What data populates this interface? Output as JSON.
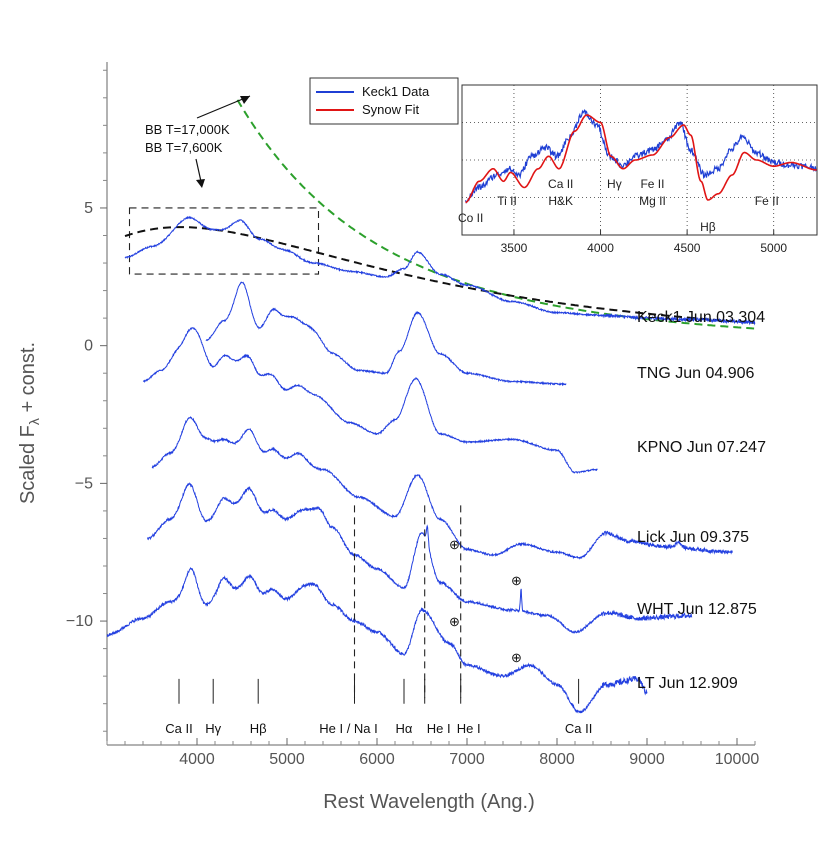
{
  "chart_data": [
    {
      "type": "line",
      "title": "",
      "xlabel": "Rest Wavelength (Ang.)",
      "ylabel_main": "Scaled F",
      "ylabel_sub": "λ",
      "ylabel_rest": " + const.",
      "xlim": [
        3000,
        10200
      ],
      "ylim": [
        -14.5,
        10.3
      ],
      "x_ticks": [
        4000,
        5000,
        6000,
        7000,
        8000,
        9000,
        10000
      ],
      "y_ticks": [
        -10,
        -5,
        0,
        5
      ],
      "series": [
        {
          "name": "Keck1 Jun 03.304",
          "x_range": [
            3200,
            10200
          ],
          "nodes": [
            [
              3200,
              3.2
            ],
            [
              3500,
              3.6
            ],
            [
              3900,
              4.3
            ],
            [
              4250,
              3.8
            ],
            [
              4480,
              4.2
            ],
            [
              4700,
              3.5
            ],
            [
              5000,
              3.3
            ],
            [
              5300,
              3.0
            ],
            [
              5700,
              2.7
            ],
            [
              6100,
              2.5
            ],
            [
              6300,
              2.8
            ],
            [
              6450,
              3.4
            ],
            [
              6700,
              2.6
            ],
            [
              7000,
              2.2
            ],
            [
              7500,
              1.6
            ],
            [
              8000,
              1.2
            ],
            [
              8500,
              1.1
            ],
            [
              9000,
              1.0
            ],
            [
              9500,
              0.95
            ],
            [
              10200,
              0.85
            ]
          ],
          "lines": [
            [
              3930,
              0.35,
              210
            ],
            [
              4250,
              0.35,
              140
            ],
            [
              4480,
              0.3,
              140
            ],
            [
              4720,
              0.35,
              150
            ],
            [
              4980,
              0.15,
              140
            ]
          ],
          "noise": 0.05
        },
        {
          "name": "TNG Jun 04.906",
          "x_range": [
            4100,
            8100
          ],
          "nodes": [
            [
              4100,
              0.2
            ],
            [
              4300,
              0.9
            ],
            [
              4500,
              1.8
            ],
            [
              4700,
              0.6
            ],
            [
              4900,
              1.0
            ],
            [
              5200,
              0.6
            ],
            [
              5500,
              -0.3
            ],
            [
              5800,
              -0.9
            ],
            [
              6100,
              -1.0
            ],
            [
              6250,
              -0.2
            ],
            [
              6450,
              1.2
            ],
            [
              6700,
              -0.3
            ],
            [
              7000,
              -1.0
            ],
            [
              7500,
              -1.3
            ],
            [
              8100,
              -1.4
            ]
          ],
          "lines": [
            [
              4500,
              0.5,
              90
            ],
            [
              4830,
              0.4,
              90
            ],
            [
              5100,
              0.3,
              120
            ],
            [
              5350,
              0.2,
              110
            ]
          ],
          "noise": 0.05
        },
        {
          "name": "KPNO Jun 07.247",
          "x_range": [
            3400,
            8450
          ],
          "nodes": [
            [
              3400,
              -1.3
            ],
            [
              3600,
              -0.9
            ],
            [
              3800,
              -0.2
            ],
            [
              4000,
              0.1
            ],
            [
              4200,
              -0.9
            ],
            [
              4500,
              -0.6
            ],
            [
              4700,
              -1.2
            ],
            [
              5000,
              -1.7
            ],
            [
              5300,
              -1.8
            ],
            [
              5700,
              -2.8
            ],
            [
              6000,
              -3.2
            ],
            [
              6200,
              -2.7
            ],
            [
              6430,
              -1.2
            ],
            [
              6700,
              -3.2
            ],
            [
              7000,
              -3.5
            ],
            [
              7500,
              -3.4
            ],
            [
              8000,
              -3.8
            ],
            [
              8200,
              -4.6
            ],
            [
              8450,
              -4.5
            ]
          ],
          "lines": [
            [
              3930,
              0.6,
              110
            ],
            [
              4300,
              0.45,
              100
            ],
            [
              4590,
              0.4,
              90
            ],
            [
              4840,
              0.35,
              100
            ],
            [
              5130,
              0.3,
              110
            ]
          ],
          "noise": 0.05
        },
        {
          "name": "Lick Jun 09.375",
          "x_range": [
            3500,
            9950
          ],
          "nodes": [
            [
              3500,
              -4.4
            ],
            [
              3700,
              -3.9
            ],
            [
              3900,
              -3.2
            ],
            [
              4100,
              -3.4
            ],
            [
              4300,
              -3.9
            ],
            [
              4550,
              -3.4
            ],
            [
              4800,
              -4.1
            ],
            [
              5100,
              -4.2
            ],
            [
              5400,
              -4.5
            ],
            [
              5800,
              -5.5
            ],
            [
              6200,
              -6.2
            ],
            [
              6450,
              -4.7
            ],
            [
              6700,
              -6.3
            ],
            [
              7000,
              -7.4
            ],
            [
              7300,
              -7.6
            ],
            [
              7600,
              -7.2
            ],
            [
              8000,
              -7.5
            ],
            [
              8250,
              -7.7
            ],
            [
              8550,
              -6.8
            ],
            [
              8800,
              -7.1
            ],
            [
              9200,
              -7.3
            ],
            [
              9950,
              -7.5
            ]
          ],
          "lines": [
            [
              3930,
              0.6,
              100
            ],
            [
              4300,
              0.5,
              100
            ],
            [
              4590,
              0.4,
              90
            ],
            [
              4840,
              0.35,
              100
            ],
            [
              5130,
              0.3,
              110
            ],
            [
              9350,
              0.2,
              40
            ]
          ],
          "noise": 0.06
        },
        {
          "name": "WHT Jun 12.875",
          "x_range": [
            3450,
            9500
          ],
          "nodes": [
            [
              3450,
              -7.0
            ],
            [
              3700,
              -6.3
            ],
            [
              3900,
              -5.6
            ],
            [
              4100,
              -6.4
            ],
            [
              4300,
              -6.1
            ],
            [
              4550,
              -5.6
            ],
            [
              4800,
              -6.3
            ],
            [
              5050,
              -6.4
            ],
            [
              5350,
              -5.9
            ],
            [
              5500,
              -6.6
            ],
            [
              5750,
              -7.6
            ],
            [
              6000,
              -8.1
            ],
            [
              6300,
              -8.8
            ],
            [
              6500,
              -6.8
            ],
            [
              6700,
              -8.6
            ],
            [
              7000,
              -9.3
            ],
            [
              7500,
              -9.6
            ],
            [
              7900,
              -9.8
            ],
            [
              8200,
              -10.4
            ],
            [
              8550,
              -9.7
            ],
            [
              8900,
              -9.9
            ],
            [
              9500,
              -9.8
            ]
          ],
          "lines": [
            [
              3930,
              0.6,
              100
            ],
            [
              4300,
              0.55,
              100
            ],
            [
              4590,
              0.45,
              90
            ],
            [
              4840,
              0.35,
              100
            ],
            [
              5130,
              0.3,
              110
            ],
            [
              7600,
              0.8,
              10
            ],
            [
              6560,
              0.6,
              15
            ]
          ],
          "noise": 0.08
        },
        {
          "name": "LT Jun 12.909",
          "x_range": [
            3000,
            9000
          ],
          "nodes": [
            [
              3000,
              -10.5
            ],
            [
              3400,
              -9.9
            ],
            [
              3700,
              -9.3
            ],
            [
              3950,
              -8.8
            ],
            [
              4100,
              -9.4
            ],
            [
              4300,
              -9.0
            ],
            [
              4550,
              -8.8
            ],
            [
              4800,
              -9.2
            ],
            [
              5050,
              -9.3
            ],
            [
              5300,
              -8.7
            ],
            [
              5500,
              -9.4
            ],
            [
              5750,
              -10.0
            ],
            [
              6000,
              -10.4
            ],
            [
              6300,
              -11.2
            ],
            [
              6500,
              -9.6
            ],
            [
              6800,
              -10.8
            ],
            [
              7000,
              -11.6
            ],
            [
              7400,
              -12.0
            ],
            [
              7700,
              -11.6
            ],
            [
              8000,
              -12.3
            ],
            [
              8250,
              -13.3
            ],
            [
              8550,
              -12.3
            ],
            [
              8900,
              -12.1
            ],
            [
              9000,
              -12.6
            ]
          ],
          "lines": [
            [
              3930,
              0.7,
              80
            ],
            [
              4300,
              0.55,
              90
            ],
            [
              4590,
              0.45,
              90
            ],
            [
              4840,
              0.35,
              100
            ],
            [
              5130,
              0.3,
              110
            ]
          ],
          "noise": 0.1
        }
      ],
      "fits": [
        {
          "name": "BB T=17,000K",
          "temperature": 17000,
          "scale": 1.2,
          "x_range": [
            4450,
            10200
          ]
        },
        {
          "name": "BB T=7,600K",
          "temperature": 7600,
          "scale": 1.3,
          "x_range": [
            3200,
            10200
          ]
        }
      ],
      "line_ids": [
        {
          "label": "Ca II",
          "x": 3800
        },
        {
          "label": "Hγ",
          "x": 4180
        },
        {
          "label": "Hβ",
          "x": 4680
        },
        {
          "label": "He I / Na I",
          "x": 5750
        },
        {
          "label": "Hα",
          "x": 6300
        },
        {
          "label": "He I",
          "x": 6530
        },
        {
          "label": "He I",
          "x": 6930
        },
        {
          "label": "Ca II",
          "x": 8240
        }
      ],
      "dashed_verticals": [
        5750,
        6530,
        6930
      ],
      "telluric_symbol": "⊕",
      "telluric_marks": [
        [
          6860,
          -7.2
        ],
        [
          7550,
          -8.5
        ],
        [
          6860,
          -10.0
        ],
        [
          7550,
          -11.3
        ]
      ],
      "zoom_box": {
        "x": [
          3250,
          5350
        ],
        "y": [
          2.6,
          5.0
        ]
      },
      "annotation": {
        "text_1": "BB T=17,000K",
        "text_2": "BB T=7,600K"
      }
    },
    {
      "type": "line",
      "name": "inset",
      "xlim": [
        3200,
        5250
      ],
      "x_ticks": [
        3500,
        4000,
        4500,
        5000
      ],
      "legend": [
        {
          "label": "Keck1 Data",
          "color": "#1f3fd4"
        },
        {
          "label": "Synow   Fit",
          "color": "#e01515"
        }
      ],
      "data_nodes": [
        [
          3220,
          0.2
        ],
        [
          3300,
          0.3
        ],
        [
          3400,
          0.4
        ],
        [
          3470,
          0.45
        ],
        [
          3530,
          0.4
        ],
        [
          3600,
          0.55
        ],
        [
          3680,
          0.62
        ],
        [
          3750,
          0.55
        ],
        [
          3820,
          0.7
        ],
        [
          3900,
          0.9
        ],
        [
          3980,
          0.8
        ],
        [
          4050,
          0.55
        ],
        [
          4130,
          0.48
        ],
        [
          4200,
          0.55
        ],
        [
          4300,
          0.6
        ],
        [
          4380,
          0.68
        ],
        [
          4460,
          0.82
        ],
        [
          4520,
          0.6
        ],
        [
          4600,
          0.4
        ],
        [
          4680,
          0.45
        ],
        [
          4750,
          0.6
        ],
        [
          4820,
          0.7
        ],
        [
          4900,
          0.58
        ],
        [
          5000,
          0.5
        ],
        [
          5100,
          0.48
        ],
        [
          5250,
          0.46
        ]
      ],
      "fit_nodes": [
        [
          3220,
          0.18
        ],
        [
          3300,
          0.35
        ],
        [
          3380,
          0.45
        ],
        [
          3440,
          0.35
        ],
        [
          3480,
          0.42
        ],
        [
          3560,
          0.3
        ],
        [
          3640,
          0.45
        ],
        [
          3700,
          0.55
        ],
        [
          3760,
          0.45
        ],
        [
          3850,
          0.75
        ],
        [
          3920,
          0.88
        ],
        [
          4000,
          0.82
        ],
        [
          4060,
          0.55
        ],
        [
          4130,
          0.45
        ],
        [
          4200,
          0.52
        ],
        [
          4300,
          0.56
        ],
        [
          4400,
          0.7
        ],
        [
          4480,
          0.8
        ],
        [
          4520,
          0.72
        ],
        [
          4580,
          0.35
        ],
        [
          4620,
          0.2
        ],
        [
          4680,
          0.25
        ],
        [
          4760,
          0.4
        ],
        [
          4830,
          0.58
        ],
        [
          4900,
          0.52
        ],
        [
          5000,
          0.47
        ],
        [
          5100,
          0.5
        ],
        [
          5250,
          0.44
        ]
      ],
      "labels": [
        {
          "text": "Co II",
          "x": 3250,
          "row": 1
        },
        {
          "text": "Ti II",
          "x": 3460,
          "row": 0
        },
        {
          "text": "Ca II",
          "x": 3770,
          "row": -1
        },
        {
          "text": "H&K",
          "x": 3770,
          "row": 0
        },
        {
          "text": "Hγ",
          "x": 4080,
          "row": -1
        },
        {
          "text": "Fe II",
          "x": 4300,
          "row": -1
        },
        {
          "text": "Mg II",
          "x": 4300,
          "row": 0
        },
        {
          "text": "Hβ",
          "x": 4620,
          "row": 1.4
        },
        {
          "text": "Fe II",
          "x": 4960,
          "row": 0
        }
      ]
    }
  ]
}
